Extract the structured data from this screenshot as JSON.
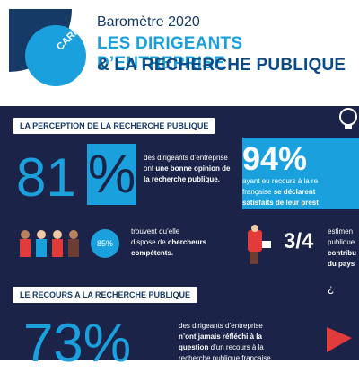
{
  "header": {
    "logo_text": "CARNOT",
    "year_title": "Baromètre 2020",
    "title_line1": "LES DIRIGEANTS D’ENTREPRISE",
    "title_line2": "& LA RECHERCHE PUBLIQUE"
  },
  "section1": {
    "label": "LA PERCEPTION DE LA RECHERCHE PUBLIQUE",
    "stat81": {
      "value": "81",
      "pct": "%",
      "text_line1": "des dirigeants d’entreprise",
      "text_line2_pre": "ont ",
      "text_line2_bold": "une bonne opinion de",
      "text_line3_bold": "la recherche publique."
    },
    "stat94": {
      "value": "94%",
      "text_line1": "ayant eu recours à la re",
      "text_line2_pre": "française ",
      "text_line2_bold": "se déclarent",
      "text_line3_bold": "satisfaits de leur prest"
    },
    "stat85": {
      "value": "85%",
      "text_line1": "trouvent qu’elle",
      "text_line2_pre": "dispose de ",
      "text_line2_bold": "chercheurs",
      "text_line3_bold": "compétents."
    },
    "stat34": {
      "value": "3/4",
      "text_line1": "estimen",
      "text_line2": "publique",
      "text_line3_bold": "contribu",
      "text_line4_bold": "du pays"
    }
  },
  "section2": {
    "label": "LE RECOURS A LA RECHERCHE PUBLIQUE",
    "stat73": {
      "value": "73%",
      "text_line1": "des dirigeants d’entreprise",
      "text_line2_bold": "n’ont jamais réfléchi à la",
      "text_line3_bold": "question",
      "text_line3_rest": " d’un recours à la",
      "text_line4": "recherche publique française"
    }
  },
  "colors": {
    "accent": "#1aa0dd",
    "navy": "#1b2448",
    "title_dark": "#0b4a86"
  }
}
